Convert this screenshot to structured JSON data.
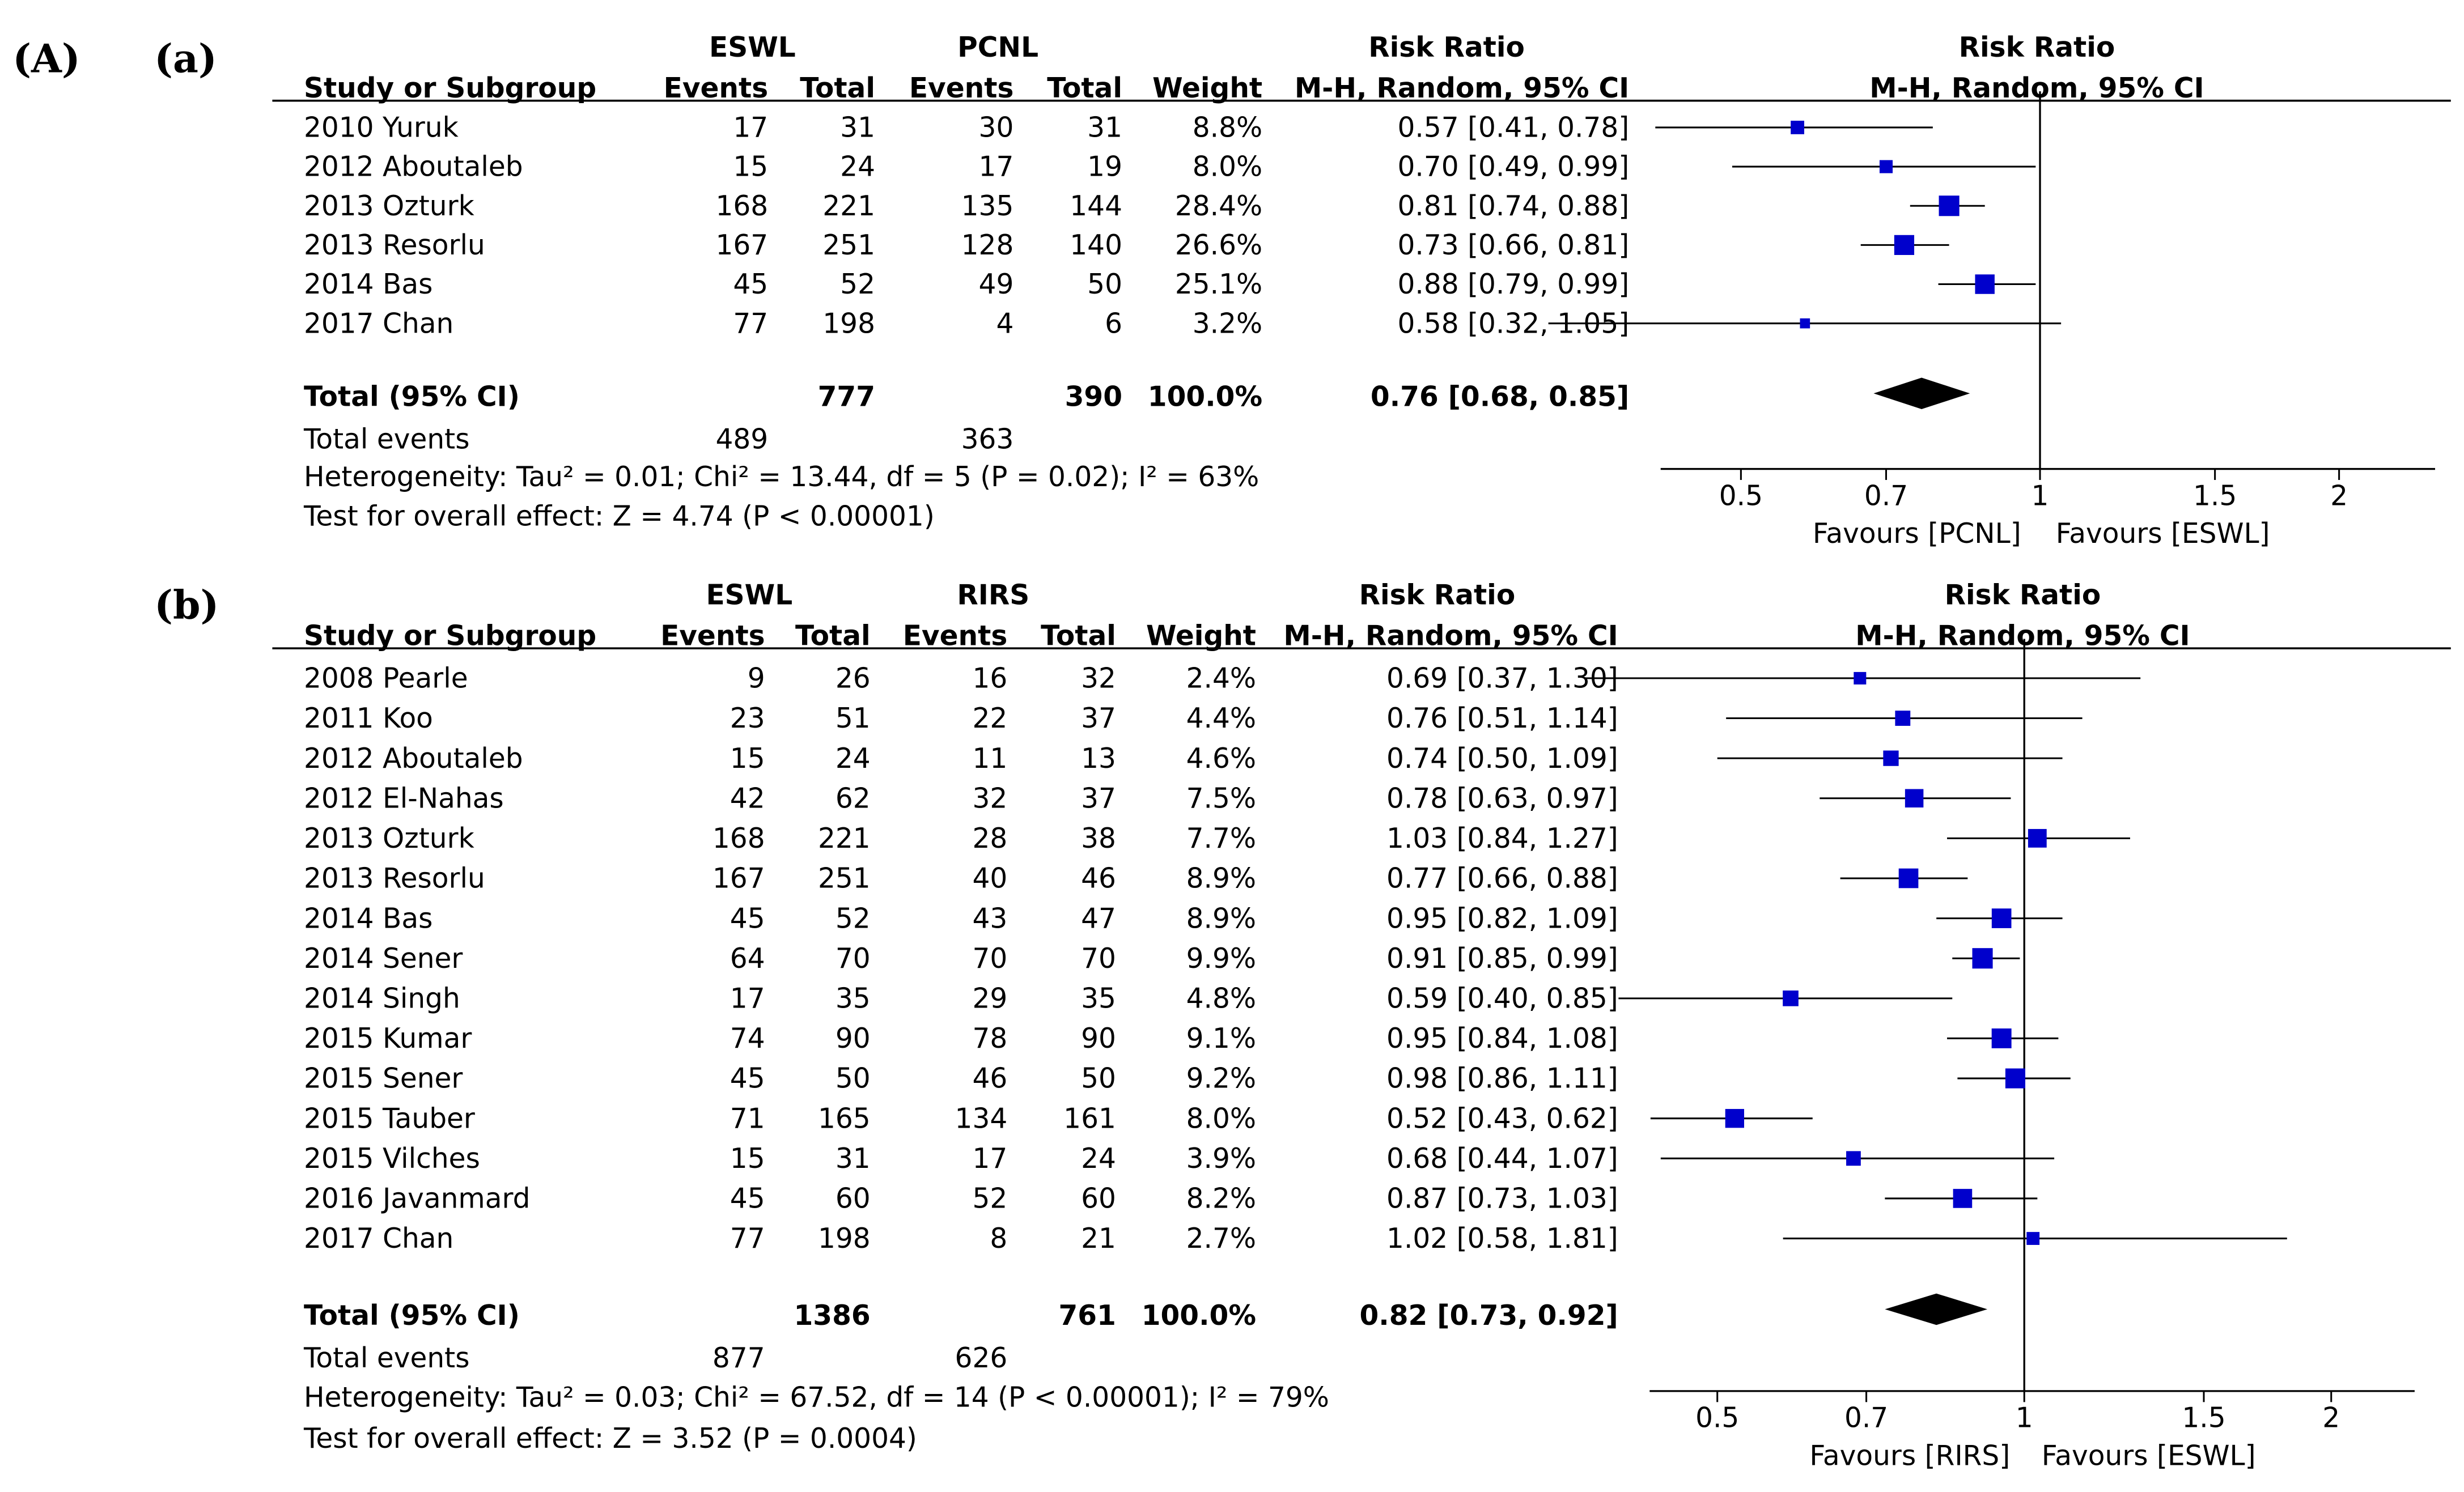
{
  "figure_label": "(A)",
  "chart_data": [
    {
      "type": "forest",
      "panel": "(a)",
      "groups": {
        "exp": "ESWL",
        "ctl": "PCNL"
      },
      "headers": {
        "study": "Study or Subgroup",
        "events": "Events",
        "total": "Total",
        "weight": "Weight",
        "rr": "Risk Ratio",
        "rr_method": "M-H, Random, 95% CI"
      },
      "studies": [
        {
          "name": "2010 Yuruk",
          "e1": "17",
          "n1": "31",
          "e2": "30",
          "n2": "31",
          "weight": "8.8%",
          "rr": 0.57,
          "lo": 0.41,
          "hi": 0.78,
          "ci_text": "0.57 [0.41, 0.78]"
        },
        {
          "name": "2012 Aboutaleb",
          "e1": "15",
          "n1": "24",
          "e2": "17",
          "n2": "19",
          "weight": "8.0%",
          "rr": 0.7,
          "lo": 0.49,
          "hi": 0.99,
          "ci_text": "0.70 [0.49, 0.99]"
        },
        {
          "name": "2013 Ozturk",
          "e1": "168",
          "n1": "221",
          "e2": "135",
          "n2": "144",
          "weight": "28.4%",
          "rr": 0.81,
          "lo": 0.74,
          "hi": 0.88,
          "ci_text": "0.81 [0.74, 0.88]"
        },
        {
          "name": "2013 Resorlu",
          "e1": "167",
          "n1": "251",
          "e2": "128",
          "n2": "140",
          "weight": "26.6%",
          "rr": 0.73,
          "lo": 0.66,
          "hi": 0.81,
          "ci_text": "0.73 [0.66, 0.81]"
        },
        {
          "name": "2014 Bas",
          "e1": "45",
          "n1": "52",
          "e2": "49",
          "n2": "50",
          "weight": "25.1%",
          "rr": 0.88,
          "lo": 0.79,
          "hi": 0.99,
          "ci_text": "0.88 [0.79, 0.99]"
        },
        {
          "name": "2017 Chan",
          "e1": "77",
          "n1": "198",
          "e2": "4",
          "n2": "6",
          "weight": "3.2%",
          "rr": 0.58,
          "lo": 0.32,
          "hi": 1.05,
          "ci_text": "0.58 [0.32, 1.05]"
        }
      ],
      "total": {
        "label": "Total (95% CI)",
        "n1": "777",
        "n2": "390",
        "weight": "100.0%",
        "rr": 0.76,
        "lo": 0.68,
        "hi": 0.85,
        "ci_text": "0.76 [0.68, 0.85]"
      },
      "total_events": {
        "label": "Total events",
        "e1": "489",
        "e2": "363"
      },
      "heterogeneity": "Heterogeneity: Tau² = 0.01; Chi² = 13.44, df = 5 (P = 0.02); I² = 63%",
      "overall_effect": "Test for overall effect: Z = 4.74 (P < 0.00001)",
      "axis": {
        "scale": "log",
        "ticks": [
          0.5,
          0.7,
          1,
          1.5,
          2
        ],
        "tick_labels": [
          "0.5",
          "0.7",
          "1",
          "1.5",
          "2"
        ]
      },
      "favours_left": "Favours [PCNL]",
      "favours_right": "Favours [ESWL]"
    },
    {
      "type": "forest",
      "panel": "(b)",
      "groups": {
        "exp": "ESWL",
        "ctl": "RIRS"
      },
      "headers": {
        "study": "Study or Subgroup",
        "events": "Events",
        "total": "Total",
        "weight": "Weight",
        "rr": "Risk Ratio",
        "rr_method": "M-H, Random, 95% CI"
      },
      "studies": [
        {
          "name": "2008 Pearle",
          "e1": "9",
          "n1": "26",
          "e2": "16",
          "n2": "32",
          "weight": "2.4%",
          "rr": 0.69,
          "lo": 0.37,
          "hi": 1.3,
          "ci_text": "0.69 [0.37, 1.30]"
        },
        {
          "name": "2011 Koo",
          "e1": "23",
          "n1": "51",
          "e2": "22",
          "n2": "37",
          "weight": "4.4%",
          "rr": 0.76,
          "lo": 0.51,
          "hi": 1.14,
          "ci_text": "0.76 [0.51, 1.14]"
        },
        {
          "name": "2012 Aboutaleb",
          "e1": "15",
          "n1": "24",
          "e2": "11",
          "n2": "13",
          "weight": "4.6%",
          "rr": 0.74,
          "lo": 0.5,
          "hi": 1.09,
          "ci_text": "0.74 [0.50, 1.09]"
        },
        {
          "name": "2012 El-Nahas",
          "e1": "42",
          "n1": "62",
          "e2": "32",
          "n2": "37",
          "weight": "7.5%",
          "rr": 0.78,
          "lo": 0.63,
          "hi": 0.97,
          "ci_text": "0.78 [0.63, 0.97]"
        },
        {
          "name": "2013 Ozturk",
          "e1": "168",
          "n1": "221",
          "e2": "28",
          "n2": "38",
          "weight": "7.7%",
          "rr": 1.03,
          "lo": 0.84,
          "hi": 1.27,
          "ci_text": "1.03 [0.84, 1.27]"
        },
        {
          "name": "2013 Resorlu",
          "e1": "167",
          "n1": "251",
          "e2": "40",
          "n2": "46",
          "weight": "8.9%",
          "rr": 0.77,
          "lo": 0.66,
          "hi": 0.88,
          "ci_text": "0.77 [0.66, 0.88]"
        },
        {
          "name": "2014 Bas",
          "e1": "45",
          "n1": "52",
          "e2": "43",
          "n2": "47",
          "weight": "8.9%",
          "rr": 0.95,
          "lo": 0.82,
          "hi": 1.09,
          "ci_text": "0.95 [0.82, 1.09]"
        },
        {
          "name": "2014 Sener",
          "e1": "64",
          "n1": "70",
          "e2": "70",
          "n2": "70",
          "weight": "9.9%",
          "rr": 0.91,
          "lo": 0.85,
          "hi": 0.99,
          "ci_text": "0.91 [0.85, 0.99]"
        },
        {
          "name": "2014 Singh",
          "e1": "17",
          "n1": "35",
          "e2": "29",
          "n2": "35",
          "weight": "4.8%",
          "rr": 0.59,
          "lo": 0.4,
          "hi": 0.85,
          "ci_text": "0.59 [0.40, 0.85]"
        },
        {
          "name": "2015 Kumar",
          "e1": "74",
          "n1": "90",
          "e2": "78",
          "n2": "90",
          "weight": "9.1%",
          "rr": 0.95,
          "lo": 0.84,
          "hi": 1.08,
          "ci_text": "0.95 [0.84, 1.08]"
        },
        {
          "name": "2015 Sener",
          "e1": "45",
          "n1": "50",
          "e2": "46",
          "n2": "50",
          "weight": "9.2%",
          "rr": 0.98,
          "lo": 0.86,
          "hi": 1.11,
          "ci_text": "0.98 [0.86, 1.11]"
        },
        {
          "name": "2015 Tauber",
          "e1": "71",
          "n1": "165",
          "e2": "134",
          "n2": "161",
          "weight": "8.0%",
          "rr": 0.52,
          "lo": 0.43,
          "hi": 0.62,
          "ci_text": "0.52 [0.43, 0.62]"
        },
        {
          "name": "2015 Vilches",
          "e1": "15",
          "n1": "31",
          "e2": "17",
          "n2": "24",
          "weight": "3.9%",
          "rr": 0.68,
          "lo": 0.44,
          "hi": 1.07,
          "ci_text": "0.68 [0.44, 1.07]"
        },
        {
          "name": "2016 Javanmard",
          "e1": "45",
          "n1": "60",
          "e2": "52",
          "n2": "60",
          "weight": "8.2%",
          "rr": 0.87,
          "lo": 0.73,
          "hi": 1.03,
          "ci_text": "0.87 [0.73, 1.03]"
        },
        {
          "name": "2017 Chan",
          "e1": "77",
          "n1": "198",
          "e2": "8",
          "n2": "21",
          "weight": "2.7%",
          "rr": 1.02,
          "lo": 0.58,
          "hi": 1.81,
          "ci_text": "1.02 [0.58, 1.81]"
        }
      ],
      "total": {
        "label": "Total (95% CI)",
        "n1": "1386",
        "n2": "761",
        "weight": "100.0%",
        "rr": 0.82,
        "lo": 0.73,
        "hi": 0.92,
        "ci_text": "0.82 [0.73, 0.92]"
      },
      "total_events": {
        "label": "Total events",
        "e1": "877",
        "e2": "626"
      },
      "heterogeneity": "Heterogeneity: Tau² = 0.03; Chi² = 67.52, df = 14 (P < 0.00001); I² = 79%",
      "overall_effect": "Test for overall effect: Z = 3.52 (P = 0.0004)",
      "axis": {
        "scale": "log",
        "ticks": [
          0.5,
          0.7,
          1,
          1.5,
          2
        ],
        "tick_labels": [
          "0.5",
          "0.7",
          "1",
          "1.5",
          "2"
        ]
      },
      "favours_left": "Favours [RIRS]",
      "favours_right": "Favours [ESWL]"
    }
  ],
  "colors": {
    "marker": "#0000CC",
    "line": "#000000",
    "text": "#000000"
  }
}
